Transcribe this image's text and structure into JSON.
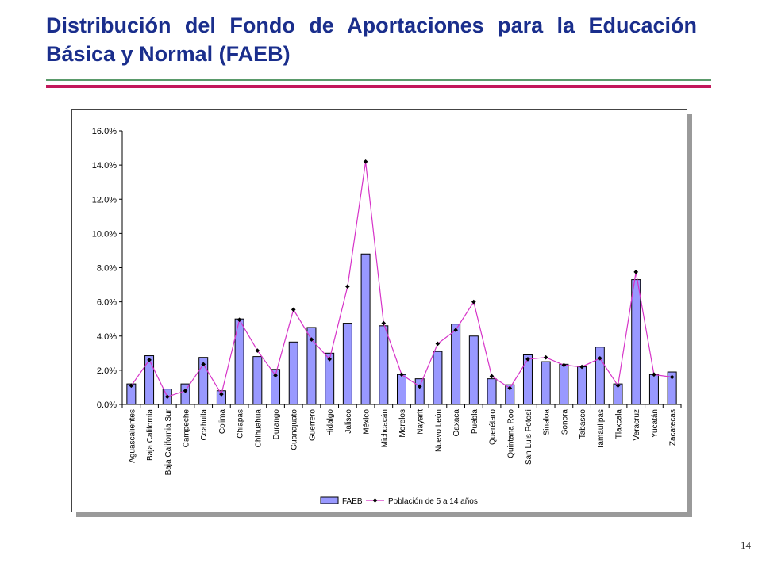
{
  "slide": {
    "title": "Distribución del Fondo de Aportaciones para la Educación Básica y Normal (FAEB)",
    "page_number": "14"
  },
  "colors": {
    "title": "#1a2e8c",
    "bar_fill": "#9999ff",
    "bar_stroke": "#000000",
    "line": "#d633c8",
    "marker": "#000000",
    "rule_green": "#5a9a6a",
    "rule_pink": "#c2185b"
  },
  "chart_data": {
    "type": "bar",
    "title": "",
    "xlabel": "",
    "ylabel": "",
    "ylim": [
      0,
      0.16
    ],
    "yticks": [
      "0.0%",
      "2.0%",
      "4.0%",
      "6.0%",
      "8.0%",
      "10.0%",
      "12.0%",
      "14.0%",
      "16.0%"
    ],
    "grid": false,
    "legend_position": "bottom",
    "categories": [
      "Aguascalientes",
      "Baja California",
      "Baja California  Sur",
      "Campeche",
      "Coahuila",
      "Colima",
      "Chiapas",
      "Chihuahua",
      "Durango",
      "Guanajuato",
      "Guerrero",
      "Hidalgo",
      "Jalisco",
      "México",
      "Michoacán",
      "Morelos",
      "Nayarit",
      "Nuevo León",
      "Oaxaca",
      "Puebla",
      "Querétaro",
      "Quintana Roo",
      "San Luis Potosí",
      "Sinaloa",
      "Sonora",
      "Tabasco",
      "Tamaulipas",
      "Tlaxcala",
      "Veracruz",
      "Yucatán",
      "Zacatecas"
    ],
    "series": [
      {
        "name": "FAEB",
        "type": "bar",
        "values": [
          0.012,
          0.0285,
          0.009,
          0.012,
          0.0275,
          0.008,
          0.05,
          0.028,
          0.0205,
          0.0365,
          0.045,
          0.03,
          0.0475,
          0.088,
          0.046,
          0.0175,
          0.015,
          0.031,
          0.047,
          0.04,
          0.015,
          0.0115,
          0.029,
          0.025,
          0.0235,
          0.022,
          0.0335,
          0.012,
          0.073,
          0.0175,
          0.019
        ]
      },
      {
        "name": "Población de 5 a 14 años",
        "type": "line",
        "values": [
          0.011,
          0.026,
          0.0045,
          0.008,
          0.0235,
          0.006,
          0.0495,
          0.0315,
          0.017,
          0.0555,
          0.038,
          0.0265,
          0.069,
          0.142,
          0.0475,
          0.0175,
          0.0105,
          0.0355,
          0.0435,
          0.06,
          0.0165,
          0.0095,
          0.0265,
          0.0275,
          0.023,
          0.022,
          0.027,
          0.011,
          0.0775,
          0.0175,
          0.016
        ]
      }
    ]
  }
}
